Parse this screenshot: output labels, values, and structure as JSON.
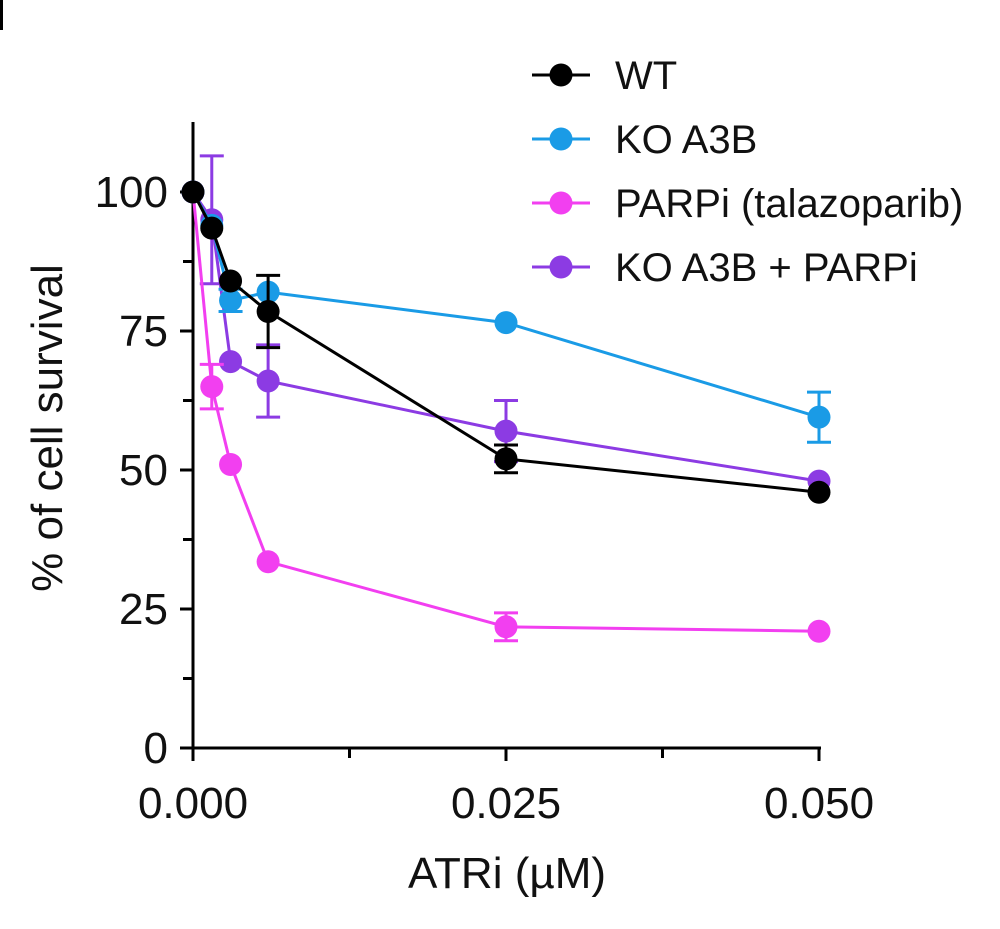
{
  "chart_data": {
    "type": "line",
    "title": "",
    "xlabel": "ATRi (µM)",
    "ylabel": "% of cell survival",
    "xlim": [
      0,
      0.05
    ],
    "ylim": [
      0,
      112
    ],
    "x_ticks": [
      {
        "value": 0.0,
        "label": "0.000"
      },
      {
        "value": 0.0125,
        "label": ""
      },
      {
        "value": 0.025,
        "label": "0.025"
      },
      {
        "value": 0.0375,
        "label": ""
      },
      {
        "value": 0.05,
        "label": "0.050"
      }
    ],
    "y_ticks": [
      {
        "value": 0,
        "label": "0"
      },
      {
        "value": 12.5,
        "label": ""
      },
      {
        "value": 25,
        "label": "25"
      },
      {
        "value": 37.5,
        "label": ""
      },
      {
        "value": 50,
        "label": "50"
      },
      {
        "value": 62.5,
        "label": ""
      },
      {
        "value": 75,
        "label": "75"
      },
      {
        "value": 87.5,
        "label": ""
      },
      {
        "value": 100,
        "label": "100"
      }
    ],
    "legend_position": "top-right",
    "series": [
      {
        "name": "WT",
        "color": "#000000",
        "points": [
          {
            "x": 0.0,
            "y": 100
          },
          {
            "x": 0.0015,
            "y": 93.5
          },
          {
            "x": 0.003,
            "y": 84
          },
          {
            "x": 0.006,
            "y": 78.5,
            "err": 6.5
          },
          {
            "x": 0.025,
            "y": 52,
            "err": 2.5
          },
          {
            "x": 0.05,
            "y": 46
          }
        ]
      },
      {
        "name": "KO A3B",
        "color": "#1a9be6",
        "points": [
          {
            "x": 0.0,
            "y": 100
          },
          {
            "x": 0.0015,
            "y": 94
          },
          {
            "x": 0.003,
            "y": 80.5,
            "err": 2
          },
          {
            "x": 0.006,
            "y": 82
          },
          {
            "x": 0.025,
            "y": 76.5
          },
          {
            "x": 0.05,
            "y": 59.5,
            "err": 4.5
          }
        ]
      },
      {
        "name": "PARPi (talazoparib)",
        "color": "#f23ff0",
        "points": [
          {
            "x": 0.0,
            "y": 100
          },
          {
            "x": 0.0015,
            "y": 65,
            "err": 4
          },
          {
            "x": 0.003,
            "y": 51
          },
          {
            "x": 0.006,
            "y": 33.5
          },
          {
            "x": 0.025,
            "y": 21.8,
            "err": 2.5
          },
          {
            "x": 0.05,
            "y": 21
          }
        ]
      },
      {
        "name": "KO A3B + PARPi",
        "color": "#8c3be3",
        "points": [
          {
            "x": 0.0,
            "y": 100
          },
          {
            "x": 0.0015,
            "y": 95,
            "err": 11.5
          },
          {
            "x": 0.003,
            "y": 69.5
          },
          {
            "x": 0.006,
            "y": 66,
            "err": 6.5
          },
          {
            "x": 0.025,
            "y": 57,
            "err": 5.5
          },
          {
            "x": 0.05,
            "y": 48
          }
        ]
      }
    ]
  }
}
